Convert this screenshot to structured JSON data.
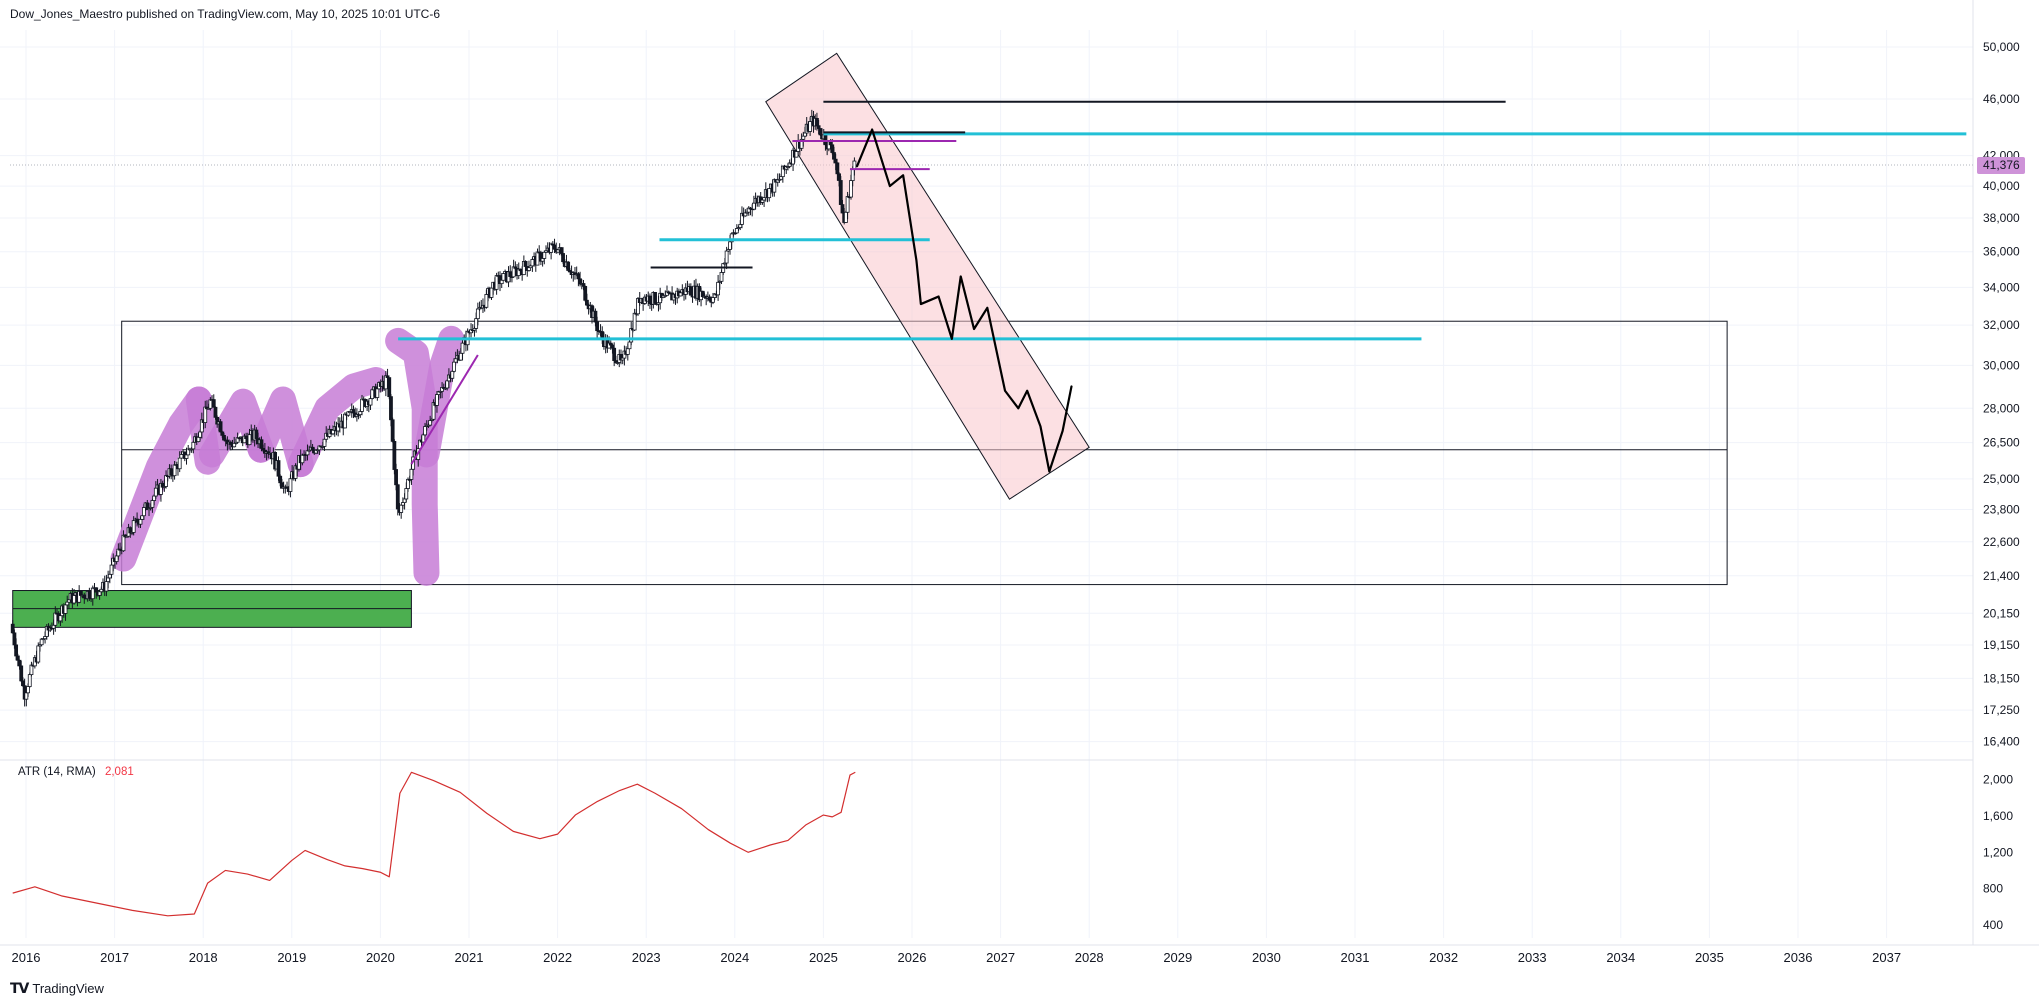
{
  "header": {
    "publisher": "Dow_Jones_Maestro published on TradingView.com, May 10, 2025 10:01 UTC-6"
  },
  "footer": {
    "brand": "TradingView",
    "logo_icon": "tradingview-logo-icon"
  },
  "colors": {
    "candle": "#131722",
    "cyan": "#22c0d6",
    "purple": "#9c27b0",
    "lavender": "#c77dd6",
    "green_zone": "#4caf50",
    "pink_channel": "#f9c7cc",
    "atr_line": "#d32f2f",
    "badge": "#ce93d8"
  },
  "atr_legend": {
    "label": "ATR (14, RMA)",
    "value": "2,081"
  },
  "current_price": {
    "label": "41,376",
    "value": 41376
  },
  "chart_data": [
    {
      "type": "candlestick",
      "title": "",
      "price_axis_ticks": [
        "50,000",
        "46,000",
        "42,000",
        "40,000",
        "38,000",
        "36,000",
        "34,000",
        "32,000",
        "30,000",
        "28,000",
        "26,500",
        "25,000",
        "23,800",
        "22,600",
        "21,400",
        "20,150",
        "19,150",
        "18,150",
        "17,250",
        "16,400"
      ],
      "price_axis_values": [
        50000,
        46000,
        42000,
        40000,
        38000,
        36000,
        34000,
        32000,
        30000,
        28000,
        26500,
        25000,
        23800,
        22600,
        21400,
        20150,
        19150,
        18150,
        17250,
        16400
      ],
      "time_axis_ticks": [
        "2016",
        "2017",
        "2018",
        "2019",
        "2020",
        "2021",
        "2022",
        "2023",
        "2024",
        "2025",
        "2026",
        "2027",
        "2028",
        "2029",
        "2030",
        "2031",
        "2032",
        "2033",
        "2034",
        "2035",
        "2036",
        "2037"
      ],
      "scale": "log",
      "price_path": [
        [
          2015.85,
          19800
        ],
        [
          2016.0,
          17700
        ],
        [
          2016.2,
          19300
        ],
        [
          2016.5,
          20600
        ],
        [
          2016.9,
          21000
        ],
        [
          2017.1,
          22500
        ],
        [
          2017.5,
          24500
        ],
        [
          2017.9,
          26400
        ],
        [
          2018.1,
          28300
        ],
        [
          2018.3,
          26400
        ],
        [
          2018.6,
          26800
        ],
        [
          2018.8,
          26000
        ],
        [
          2018.95,
          24400
        ],
        [
          2019.1,
          25700
        ],
        [
          2019.5,
          27000
        ],
        [
          2019.9,
          28500
        ],
        [
          2020.1,
          29300
        ],
        [
          2020.22,
          23500
        ],
        [
          2020.4,
          25800
        ],
        [
          2020.6,
          27800
        ],
        [
          2020.9,
          30500
        ],
        [
          2021.3,
          34200
        ],
        [
          2021.7,
          35300
        ],
        [
          2022.0,
          36300
        ],
        [
          2022.3,
          34000
        ],
        [
          2022.5,
          31500
        ],
        [
          2022.75,
          30000
        ],
        [
          2022.95,
          33500
        ],
        [
          2023.2,
          33300
        ],
        [
          2023.5,
          33900
        ],
        [
          2023.8,
          33400
        ],
        [
          2023.95,
          36500
        ],
        [
          2024.2,
          38800
        ],
        [
          2024.5,
          40200
        ],
        [
          2024.9,
          44500
        ],
        [
          2025.0,
          43500
        ],
        [
          2025.15,
          42000
        ],
        [
          2025.25,
          37600
        ],
        [
          2025.36,
          41376
        ]
      ],
      "projection_path": [
        [
          2025.38,
          41300
        ],
        [
          2025.55,
          43800
        ],
        [
          2025.75,
          40000
        ],
        [
          2025.9,
          40700
        ],
        [
          2026.05,
          35500
        ],
        [
          2026.1,
          33100
        ],
        [
          2026.3,
          33500
        ],
        [
          2026.45,
          31300
        ],
        [
          2026.55,
          34600
        ],
        [
          2026.7,
          31800
        ],
        [
          2026.85,
          32900
        ],
        [
          2027.05,
          28800
        ],
        [
          2027.2,
          28000
        ],
        [
          2027.3,
          28800
        ],
        [
          2027.45,
          27200
        ],
        [
          2027.55,
          25300
        ],
        [
          2027.7,
          27000
        ],
        [
          2027.8,
          29000
        ]
      ],
      "horizontal_levels": [
        {
          "price": 45800,
          "x_from": 2025.0,
          "x_to": 2032.7,
          "color": "black"
        },
        {
          "price": 43500,
          "x_from": 2025.0,
          "x_to": 2037.9,
          "color": "cyan"
        },
        {
          "price": 43600,
          "x_from": 2025.0,
          "x_to": 2026.6,
          "color": "black"
        },
        {
          "price": 43000,
          "x_from": 2024.65,
          "x_to": 2026.5,
          "color": "purple"
        },
        {
          "price": 41100,
          "x_from": 2025.3,
          "x_to": 2026.2,
          "color": "purple"
        },
        {
          "price": 36700,
          "x_from": 2023.15,
          "x_to": 2026.2,
          "color": "cyan"
        },
        {
          "price": 35100,
          "x_from": 2023.05,
          "x_to": 2024.2,
          "color": "black"
        },
        {
          "price": 31300,
          "x_from": 2020.2,
          "x_to": 2031.75,
          "color": "cyan"
        }
      ],
      "rectangles": [
        {
          "x_from": 2017.08,
          "x_to": 2035.2,
          "price_from": 21100,
          "price_to": 32200,
          "fill": "none"
        },
        {
          "x_from": 2017.08,
          "x_to": 2035.2,
          "price_from": 26200,
          "price_to": 26200,
          "fill": "none"
        },
        {
          "x_from": 2015.85,
          "x_to": 2020.35,
          "price_from": 19700,
          "price_to": 20900,
          "fill": "green"
        }
      ],
      "trendline": {
        "from": [
          2020.35,
          25600
        ],
        "to": [
          2021.1,
          30500
        ],
        "color": "purple"
      },
      "channel": {
        "corners": [
          [
            2024.35,
            45800
          ],
          [
            2025.15,
            49500
          ],
          [
            2028.0,
            26300
          ],
          [
            2027.1,
            24200
          ]
        ]
      }
    },
    {
      "type": "line",
      "title": "ATR (14, RMA)",
      "ylabel": "",
      "y_axis_ticks": [
        "2,000",
        "1,600",
        "1,200",
        "800",
        "400"
      ],
      "y_axis_values": [
        2000,
        1600,
        1200,
        800,
        400
      ],
      "ylim": [
        300,
        2150
      ],
      "x": [
        2015.85,
        2016.1,
        2016.4,
        2016.8,
        2017.2,
        2017.6,
        2017.9,
        2018.05,
        2018.25,
        2018.5,
        2018.75,
        2019.0,
        2019.15,
        2019.4,
        2019.6,
        2019.8,
        2020.0,
        2020.1,
        2020.22,
        2020.35,
        2020.6,
        2020.9,
        2021.2,
        2021.5,
        2021.8,
        2022.0,
        2022.2,
        2022.45,
        2022.7,
        2022.9,
        2023.1,
        2023.4,
        2023.7,
        2023.95,
        2024.15,
        2024.4,
        2024.6,
        2024.8,
        2025.0,
        2025.1,
        2025.2,
        2025.3,
        2025.36
      ],
      "values": [
        750,
        820,
        720,
        640,
        560,
        500,
        520,
        860,
        1000,
        960,
        890,
        1110,
        1220,
        1120,
        1050,
        1020,
        980,
        930,
        1850,
        2080,
        1990,
        1860,
        1630,
        1430,
        1350,
        1400,
        1610,
        1760,
        1880,
        1950,
        1850,
        1680,
        1450,
        1300,
        1200,
        1280,
        1330,
        1500,
        1610,
        1590,
        1640,
        2050,
        2081
      ]
    }
  ]
}
